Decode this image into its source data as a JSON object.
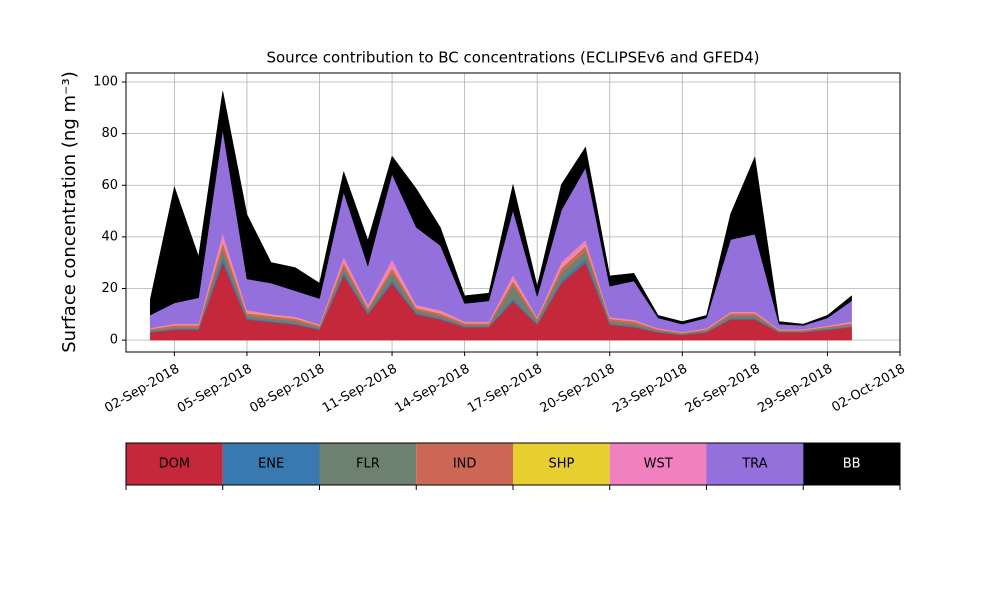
{
  "chart_data": {
    "type": "stacked_area",
    "title": "Source contribution to BC concentrations (ECLIPSEv6 and GFED4)",
    "y_label": "Surface concentration (ng m⁻³)",
    "x": [
      "2018-09-01",
      "2018-09-02",
      "2018-09-03",
      "2018-09-04",
      "2018-09-05",
      "2018-09-06",
      "2018-09-07",
      "2018-09-08",
      "2018-09-09",
      "2018-09-10",
      "2018-09-11",
      "2018-09-12",
      "2018-09-13",
      "2018-09-14",
      "2018-09-15",
      "2018-09-16",
      "2018-09-17",
      "2018-09-18",
      "2018-09-19",
      "2018-09-20",
      "2018-09-21",
      "2018-09-22",
      "2018-09-23",
      "2018-09-24",
      "2018-09-25",
      "2018-09-26",
      "2018-09-27",
      "2018-09-28",
      "2018-09-29",
      "2018-09-30"
    ],
    "series": [
      {
        "name": "DOM",
        "color": "#c4283a",
        "values": [
          3,
          4,
          4,
          30,
          8,
          7,
          6,
          4,
          25,
          10,
          22,
          10,
          8,
          5,
          5,
          15,
          6,
          22,
          30,
          6,
          5,
          3,
          2,
          3,
          8,
          8,
          3,
          3,
          4,
          5
        ]
      },
      {
        "name": "ENE",
        "color": "#3a78b0",
        "values": [
          0.3,
          0.3,
          0.3,
          2,
          0.5,
          0.4,
          0.4,
          0.3,
          1,
          0.5,
          1,
          0.5,
          0.4,
          0.3,
          0.3,
          1,
          0.3,
          1,
          1.5,
          0.3,
          0.3,
          0.2,
          0.2,
          0.2,
          0.4,
          0.4,
          0.2,
          0.2,
          0.2,
          0.3
        ]
      },
      {
        "name": "FLR",
        "color": "#6e8070",
        "values": [
          0.5,
          0.5,
          0.5,
          3,
          1,
          1,
          1,
          0.5,
          2,
          1,
          3,
          1,
          1,
          0.5,
          0.5,
          5,
          1,
          3,
          3,
          1,
          1,
          0.5,
          0.3,
          0.5,
          1,
          1,
          0.3,
          0.3,
          0.5,
          0.5
        ]
      },
      {
        "name": "IND",
        "color": "#cc6655",
        "values": [
          0.5,
          1,
          1,
          3,
          1,
          1,
          1,
          0.8,
          2,
          1,
          2,
          1,
          1,
          0.8,
          0.8,
          2,
          1,
          2,
          2,
          1,
          1,
          0.5,
          0.4,
          0.5,
          1,
          1,
          0.4,
          0.4,
          0.5,
          0.8
        ]
      },
      {
        "name": "SHP",
        "color": "#e8cf30",
        "values": [
          0.1,
          0.1,
          0.1,
          0.5,
          0.2,
          0.2,
          0.2,
          0.1,
          0.3,
          0.2,
          0.3,
          0.2,
          0.2,
          0.1,
          0.1,
          0.3,
          0.1,
          0.3,
          0.3,
          0.1,
          0.1,
          0.1,
          0.1,
          0.1,
          0.1,
          0.1,
          0.1,
          0.1,
          0.1,
          0.1
        ]
      },
      {
        "name": "WST",
        "color": "#f080c0",
        "values": [
          0.3,
          0.5,
          0.5,
          3,
          1,
          0.5,
          0.5,
          0.4,
          2,
          1,
          3,
          1,
          1,
          0.5,
          0.5,
          2,
          0.5,
          2,
          2,
          0.5,
          0.5,
          0.3,
          0.2,
          0.3,
          0.5,
          0.5,
          0.2,
          0.2,
          0.3,
          0.5
        ]
      },
      {
        "name": "TRA",
        "color": "#9370db",
        "values": [
          5,
          8,
          10,
          40,
          12,
          12,
          10,
          10,
          25,
          15,
          33,
          30,
          25,
          7,
          8,
          25,
          8,
          20,
          28,
          12,
          15,
          4,
          3,
          4,
          28,
          30,
          2,
          1.5,
          3,
          8
        ]
      },
      {
        "name": "BB",
        "color": "#000000",
        "values": [
          6,
          45,
          16,
          15,
          25,
          8,
          9,
          6,
          8,
          10,
          7,
          15,
          7,
          3,
          3,
          10,
          4,
          10,
          8,
          4,
          3,
          1,
          1,
          1,
          10,
          30,
          1,
          0.5,
          1,
          2
        ]
      }
    ],
    "xlim": [
      "2018-08-31",
      "2018-10-02"
    ],
    "xticks": [
      {
        "value": "2018-09-02",
        "label": "02-Sep-2018"
      },
      {
        "value": "2018-09-05",
        "label": "05-Sep-2018"
      },
      {
        "value": "2018-09-08",
        "label": "08-Sep-2018"
      },
      {
        "value": "2018-09-11",
        "label": "11-Sep-2018"
      },
      {
        "value": "2018-09-14",
        "label": "14-Sep-2018"
      },
      {
        "value": "2018-09-17",
        "label": "17-Sep-2018"
      },
      {
        "value": "2018-09-20",
        "label": "20-Sep-2018"
      },
      {
        "value": "2018-09-23",
        "label": "23-Sep-2018"
      },
      {
        "value": "2018-09-26",
        "label": "26-Sep-2018"
      },
      {
        "value": "2018-09-29",
        "label": "29-Sep-2018"
      },
      {
        "value": "2018-10-02",
        "label": "02-Oct-2018"
      }
    ],
    "ylim": [
      -4.6,
      103.5
    ],
    "yticks": [
      0,
      20,
      40,
      60,
      80,
      100
    ],
    "grid": true
  }
}
